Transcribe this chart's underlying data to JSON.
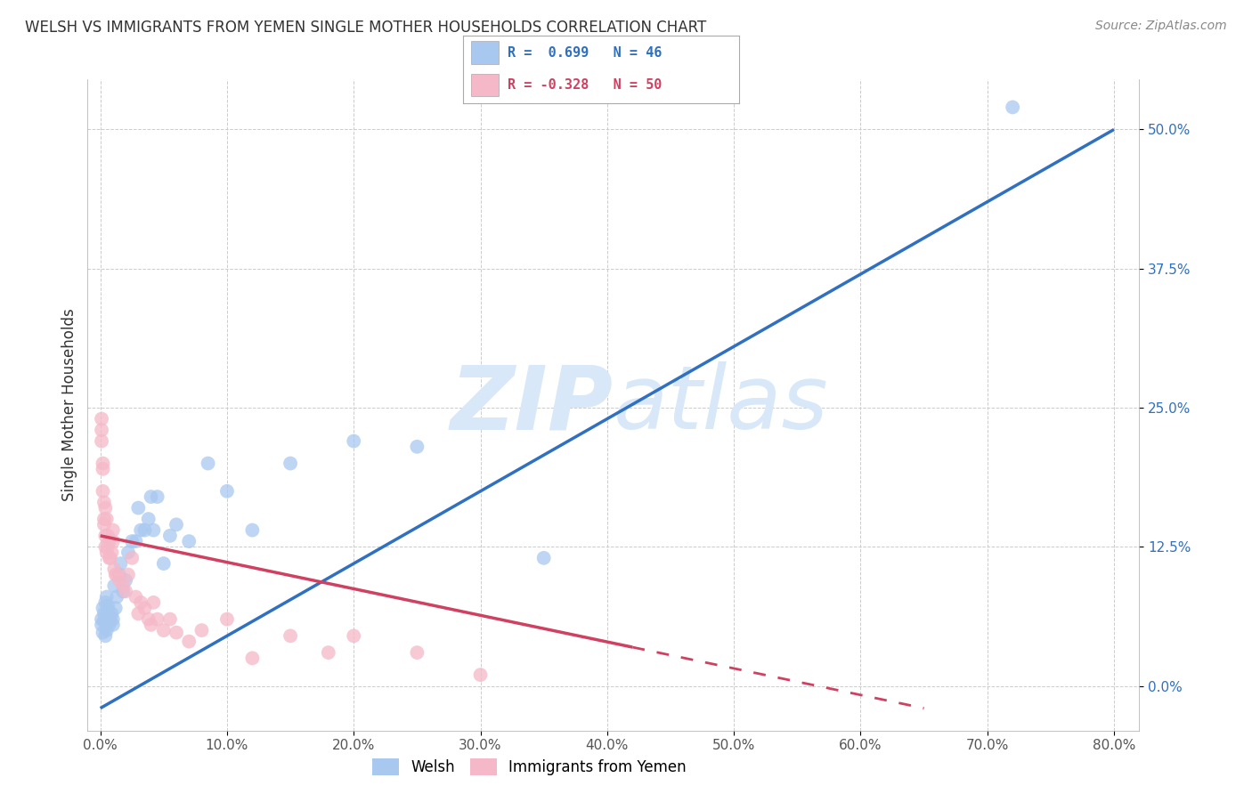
{
  "title": "WELSH VS IMMIGRANTS FROM YEMEN SINGLE MOTHER HOUSEHOLDS CORRELATION CHART",
  "source": "Source: ZipAtlas.com",
  "ylabel": "Single Mother Households",
  "welsh_r": 0.699,
  "welsh_n": 46,
  "yemen_r": -0.328,
  "yemen_n": 50,
  "welsh_color": "#a8c8f0",
  "yemen_color": "#f5b8c8",
  "welsh_line_color": "#3070c0",
  "yemen_line_color": "#d04060",
  "watermark_color": "#d8e8f8",
  "welsh_line_x0": 0.0,
  "welsh_line_y0": -0.02,
  "welsh_line_x1": 0.8,
  "welsh_line_y1": 0.5,
  "yemen_line_x0": 0.0,
  "yemen_line_y0": 0.135,
  "yemen_line_x1": 0.65,
  "yemen_line_y1": -0.02,
  "xlim": [
    -0.01,
    0.82
  ],
  "ylim": [
    -0.04,
    0.545
  ],
  "x_ticks": [
    0.0,
    0.1,
    0.2,
    0.3,
    0.4,
    0.5,
    0.6,
    0.7,
    0.8
  ],
  "y_ticks": [
    0.0,
    0.125,
    0.25,
    0.375,
    0.5
  ],
  "welsh_scatter_x": [
    0.001,
    0.001,
    0.002,
    0.002,
    0.003,
    0.003,
    0.004,
    0.004,
    0.005,
    0.005,
    0.006,
    0.006,
    0.007,
    0.008,
    0.009,
    0.01,
    0.01,
    0.011,
    0.012,
    0.013,
    0.015,
    0.016,
    0.018,
    0.02,
    0.022,
    0.025,
    0.028,
    0.03,
    0.032,
    0.035,
    0.038,
    0.04,
    0.042,
    0.045,
    0.05,
    0.055,
    0.06,
    0.07,
    0.085,
    0.1,
    0.12,
    0.15,
    0.2,
    0.25,
    0.35,
    0.72
  ],
  "welsh_scatter_y": [
    0.06,
    0.055,
    0.048,
    0.07,
    0.065,
    0.058,
    0.045,
    0.075,
    0.08,
    0.05,
    0.068,
    0.072,
    0.055,
    0.06,
    0.065,
    0.055,
    0.06,
    0.09,
    0.07,
    0.08,
    0.1,
    0.11,
    0.085,
    0.095,
    0.12,
    0.13,
    0.13,
    0.16,
    0.14,
    0.14,
    0.15,
    0.17,
    0.14,
    0.17,
    0.11,
    0.135,
    0.145,
    0.13,
    0.2,
    0.175,
    0.14,
    0.2,
    0.22,
    0.215,
    0.115,
    0.52
  ],
  "yemen_scatter_x": [
    0.001,
    0.001,
    0.001,
    0.002,
    0.002,
    0.002,
    0.003,
    0.003,
    0.003,
    0.004,
    0.004,
    0.004,
    0.005,
    0.005,
    0.006,
    0.006,
    0.007,
    0.007,
    0.008,
    0.009,
    0.01,
    0.01,
    0.011,
    0.012,
    0.013,
    0.015,
    0.018,
    0.02,
    0.022,
    0.025,
    0.028,
    0.03,
    0.032,
    0.035,
    0.038,
    0.04,
    0.042,
    0.045,
    0.05,
    0.055,
    0.06,
    0.07,
    0.08,
    0.1,
    0.12,
    0.15,
    0.18,
    0.2,
    0.25,
    0.3
  ],
  "yemen_scatter_y": [
    0.24,
    0.23,
    0.22,
    0.2,
    0.195,
    0.175,
    0.165,
    0.15,
    0.145,
    0.16,
    0.135,
    0.125,
    0.12,
    0.15,
    0.135,
    0.125,
    0.13,
    0.115,
    0.115,
    0.12,
    0.13,
    0.14,
    0.105,
    0.1,
    0.1,
    0.095,
    0.09,
    0.085,
    0.1,
    0.115,
    0.08,
    0.065,
    0.075,
    0.07,
    0.06,
    0.055,
    0.075,
    0.06,
    0.05,
    0.06,
    0.048,
    0.04,
    0.05,
    0.06,
    0.025,
    0.045,
    0.03,
    0.045,
    0.03,
    0.01
  ]
}
